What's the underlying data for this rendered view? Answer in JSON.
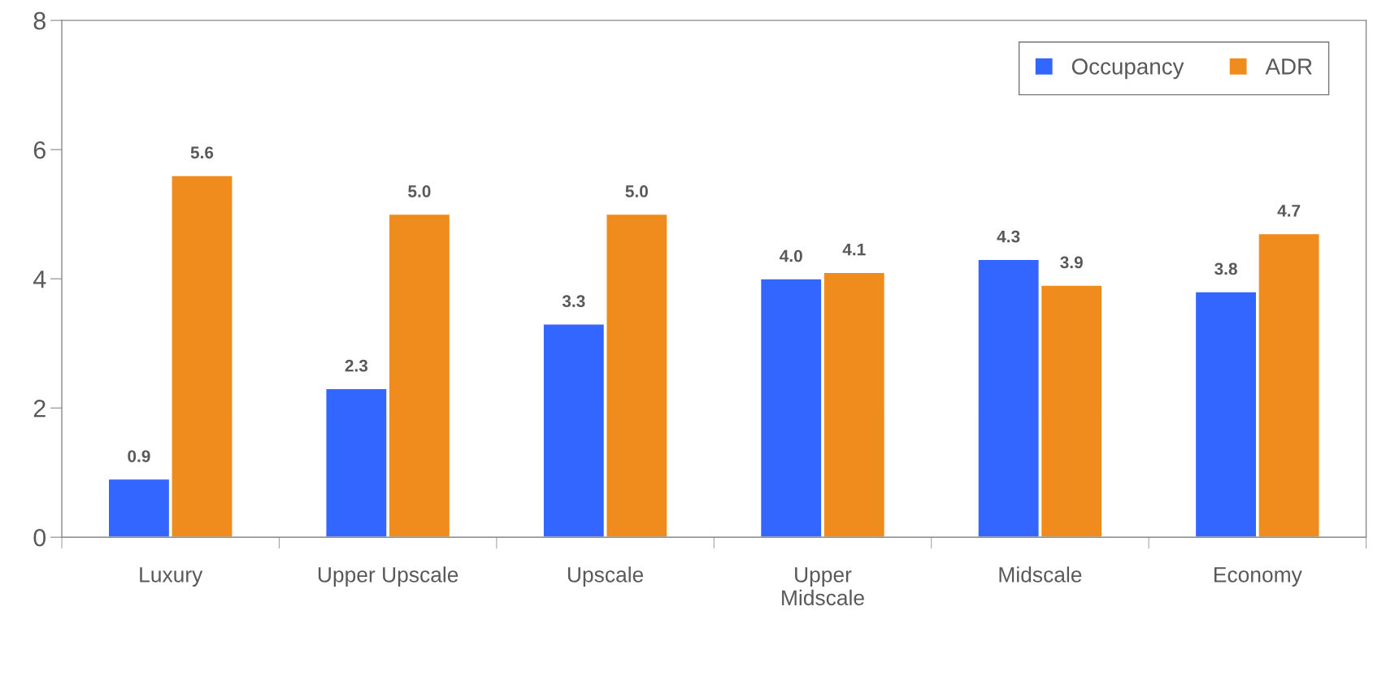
{
  "chart_data": {
    "type": "bar",
    "categories": [
      "Luxury",
      "Upper Upscale",
      "Upscale",
      "Upper\nMidscale",
      "Midscale",
      "Economy"
    ],
    "series": [
      {
        "name": "Occupancy",
        "color": "#3366ff",
        "values": [
          0.9,
          2.3,
          3.3,
          4.0,
          4.3,
          3.8
        ],
        "value_labels": [
          "0.9",
          "2.3",
          "3.3",
          "4.0",
          "4.3",
          "3.8"
        ]
      },
      {
        "name": "ADR",
        "color": "#f08c1e",
        "values": [
          5.6,
          5.0,
          5.0,
          4.1,
          3.9,
          4.7
        ],
        "value_labels": [
          "5.6",
          "5.0",
          "5.0",
          "4.1",
          "3.9",
          "4.7"
        ]
      }
    ],
    "ylim": [
      0,
      8
    ],
    "yticks": [
      0,
      2,
      4,
      6,
      8
    ],
    "grid": false,
    "legend": "top right"
  }
}
